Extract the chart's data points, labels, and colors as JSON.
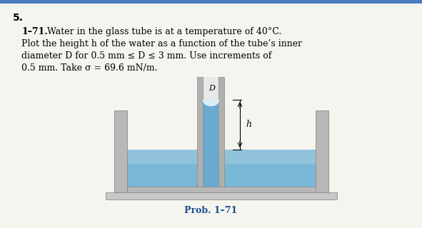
{
  "title_num": "5.",
  "problem_bold": "1–71.",
  "problem_line1": "  Water in the glass tube is at a temperature of 40°C.",
  "problem_line2": "Plot the height h of the water as a function of the tube’s inner",
  "problem_line3": "diameter D for 0.5 mm ≤ D ≤ 3 mm. Use increments of",
  "problem_line4": "0.5 mm. Take σ = 69.6 mN/m.",
  "caption": "Prob. 1–71",
  "bg_color": "#f5f5f0",
  "top_stripe_color": "#4a7cbf",
  "water_bg_color": "#7ab8d8",
  "water_light_color": "#a8cfe0",
  "tube_wall_color": "#b0b0b0",
  "tube_wall_edge": "#888888",
  "container_wall_color": "#b8b8b8",
  "base_color": "#c8c8c8",
  "water_in_tube_color": "#6aaad0",
  "meniscus_top_color": "#d8eef8",
  "caption_color": "#1a4f8a"
}
